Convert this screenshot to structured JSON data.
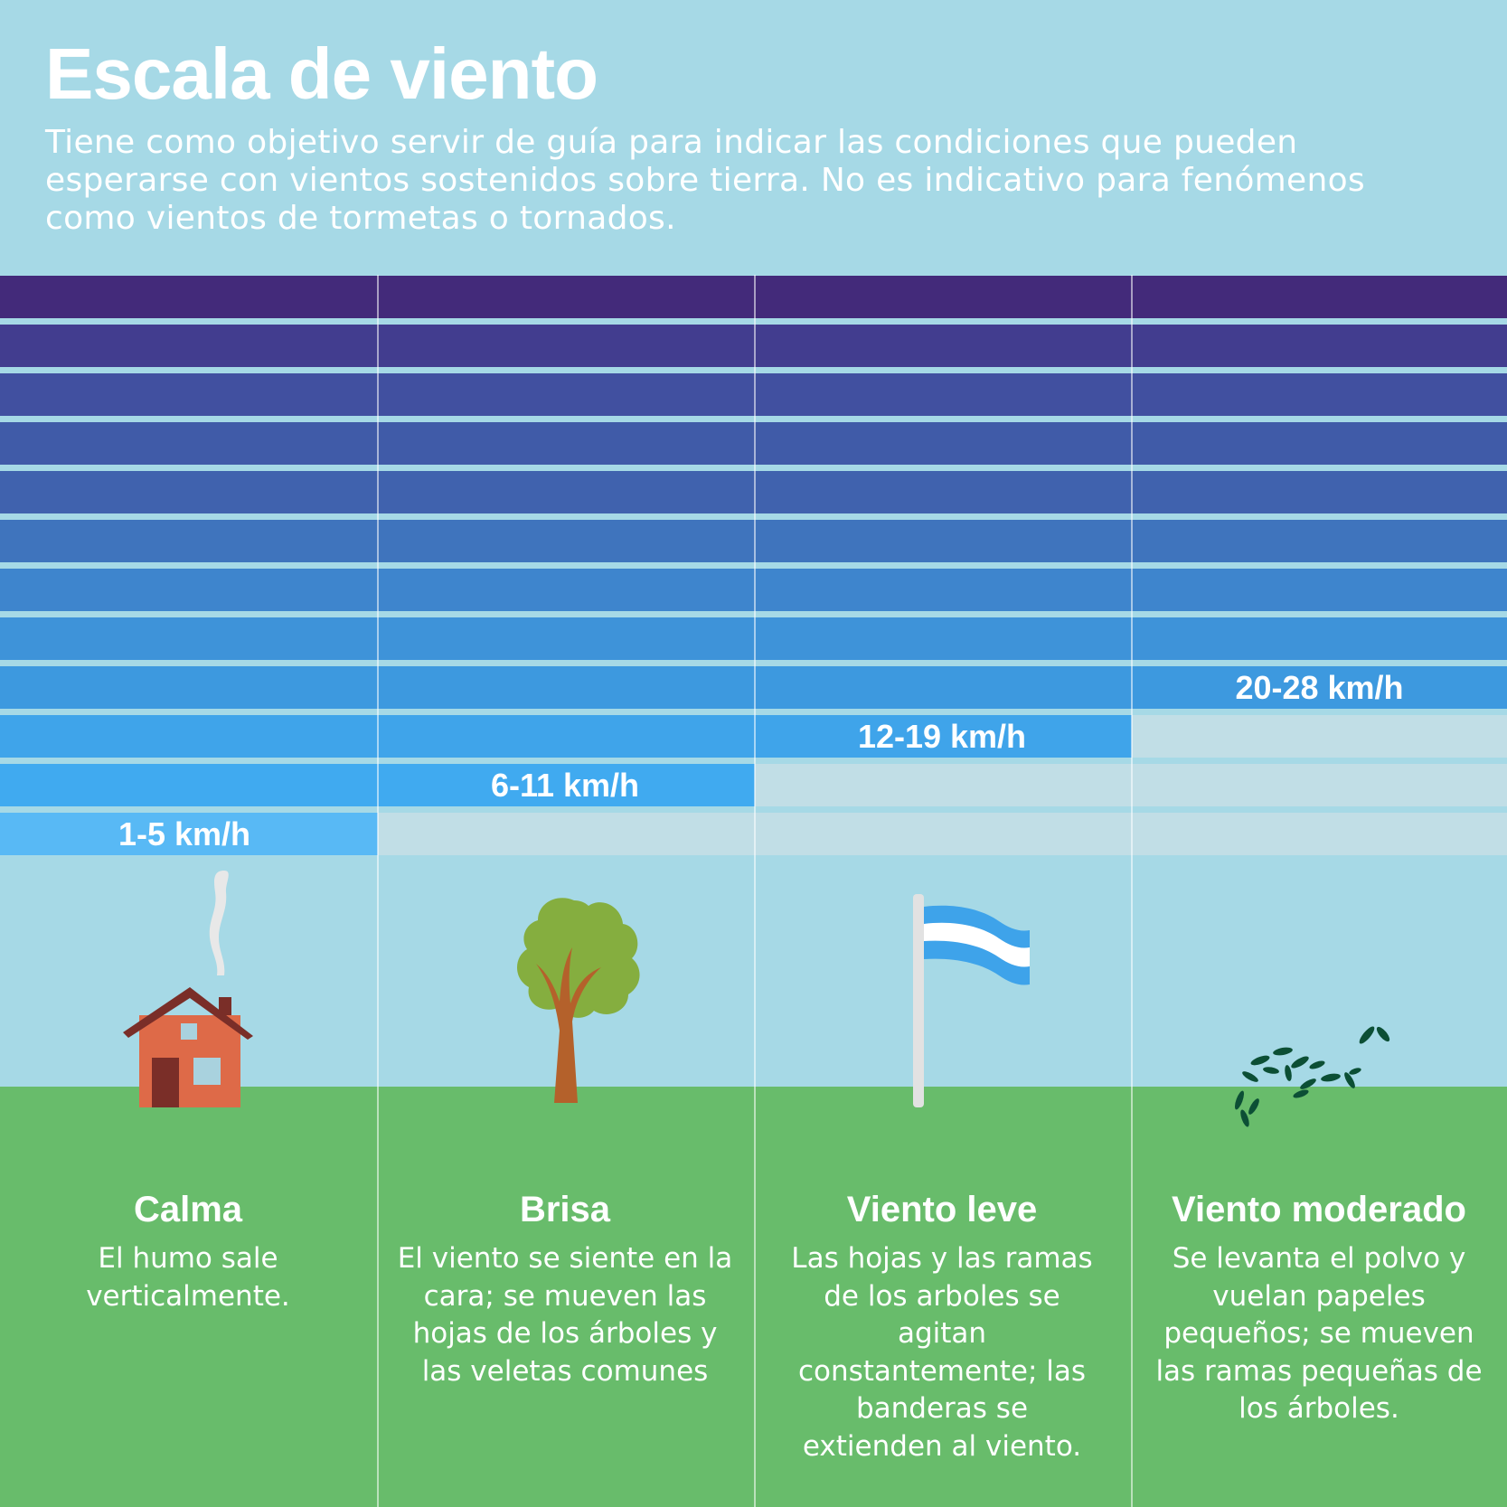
{
  "header": {
    "title": "Escala de viento",
    "subtitle": "Tiene como objetivo servir de guía para indicar las condiciones que pueden esperarse con vientos sostenidos sobre tierra. No es indicativo para fenómenos como vientos de tormetas o tornados."
  },
  "colors": {
    "sky": "#a6d9e6",
    "grass": "#68bc6b",
    "empty_band": "#c1dee6",
    "band_gradient": [
      "#432a7a",
      "#423d8f",
      "#4150a0",
      "#405ba8",
      "#4062ae",
      "#3f74bd",
      "#3e85cd",
      "#3e93d9",
      "#3d99df",
      "#3fa4ea",
      "#40aaf0",
      "#58b9f5"
    ]
  },
  "scale": [
    {
      "name": "Calma",
      "speed": "1-5 km/h",
      "level": 1,
      "description": "El humo sale verticalmente.",
      "icon": "house-with-smoke-icon"
    },
    {
      "name": "Brisa",
      "speed": "6-11 km/h",
      "level": 2,
      "description": "El viento se siente en la cara; se mueven las hojas de los árboles y las veletas comunes",
      "icon": "tree-icon"
    },
    {
      "name": "Viento leve",
      "speed": "12-19 km/h",
      "level": 3,
      "description": "Las hojas y las ramas de los arboles se agitan constantemente; las banderas se extienden al viento.",
      "icon": "flag-icon"
    },
    {
      "name": "Viento moderado",
      "speed": "20-28 km/h",
      "level": 4,
      "description": "Se levanta el polvo y vuelan papeles pequeños; se mueven las ramas pequeñas de los árboles.",
      "icon": "flying-leaves-icon"
    }
  ]
}
